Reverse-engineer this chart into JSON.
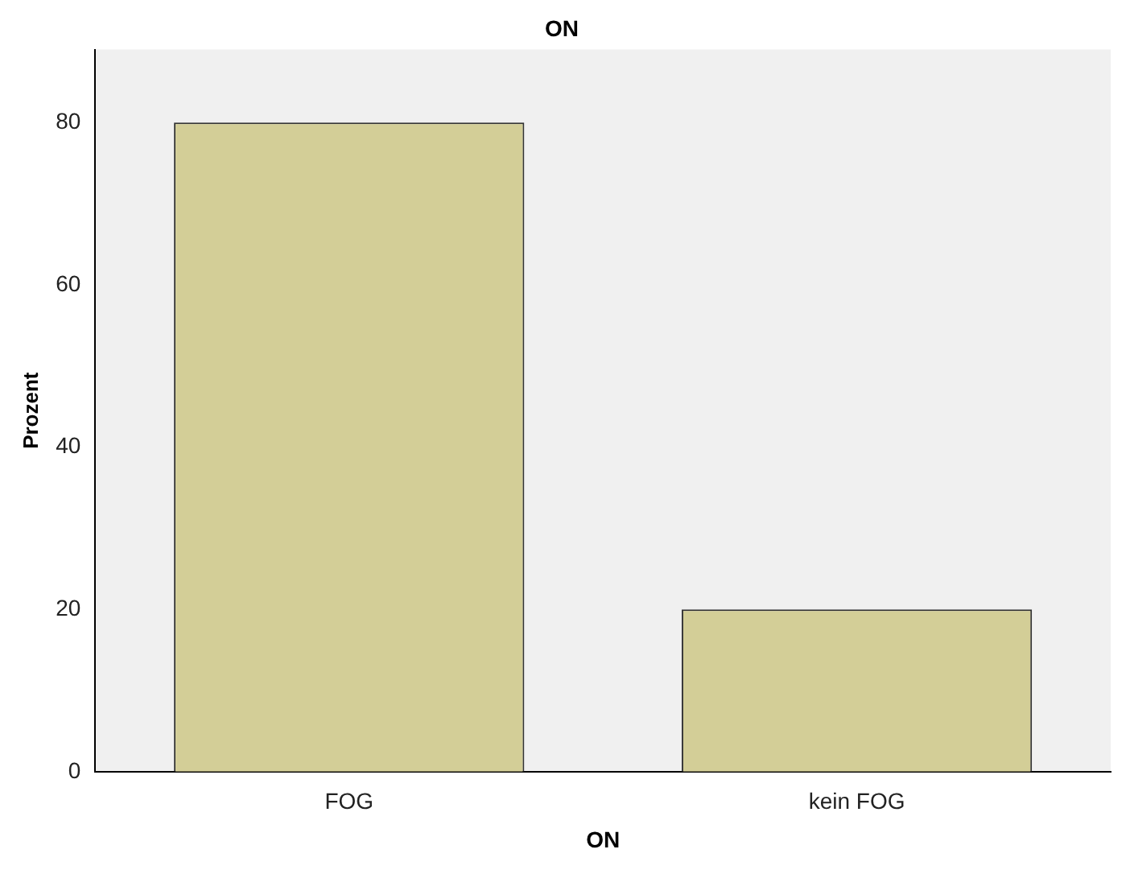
{
  "chart_data": {
    "type": "bar",
    "title": "ON",
    "xlabel": "ON",
    "ylabel": "Prozent",
    "categories": [
      "FOG",
      "kein FOG"
    ],
    "values": [
      80,
      20
    ],
    "color": "#d3ce97",
    "ylim": [
      0,
      89
    ],
    "yticks": [
      0,
      20,
      40,
      60,
      80
    ],
    "grid": false,
    "legend": false
  }
}
